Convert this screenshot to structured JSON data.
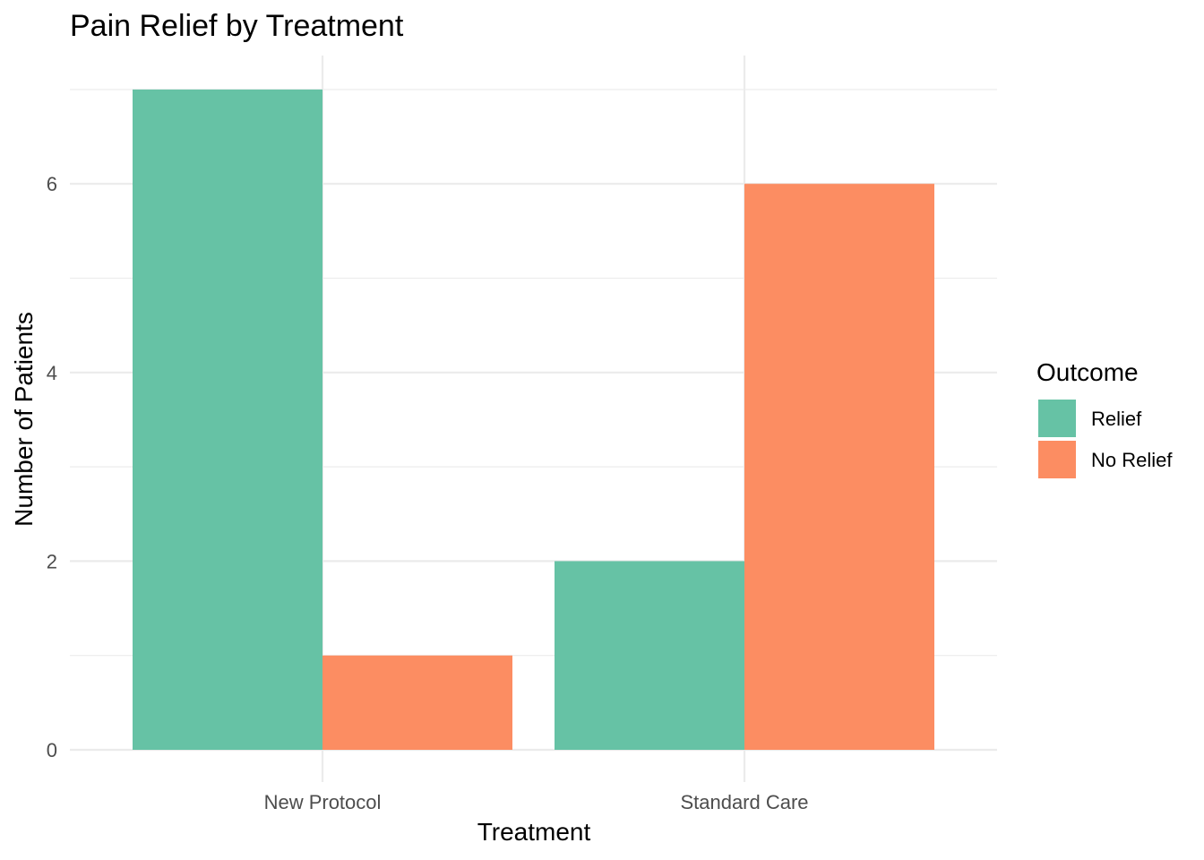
{
  "chart_data": {
    "type": "bar",
    "title": "Pain Relief by Treatment",
    "xlabel": "Treatment",
    "ylabel": "Number of Patients",
    "categories": [
      "New Protocol",
      "Standard Care"
    ],
    "series": [
      {
        "name": "Relief",
        "values": [
          7,
          2
        ],
        "color": "#66c2a5"
      },
      {
        "name": "No Relief",
        "values": [
          1,
          6
        ],
        "color": "#fc8d62"
      }
    ],
    "ylim": [
      0,
      7
    ],
    "y_ticks": [
      "0",
      "2",
      "4",
      "6"
    ],
    "legend": {
      "title": "Outcome",
      "placement": "right"
    },
    "grid": true
  }
}
